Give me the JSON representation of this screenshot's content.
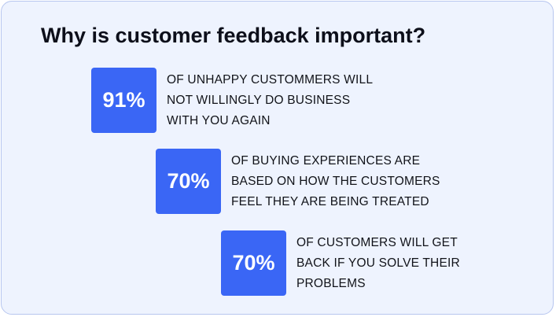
{
  "title": "Why is customer feedback important?",
  "stats": [
    {
      "value": "91%",
      "lines": [
        "OF UNHAPPY CUSTOMMERS WILL",
        "NOT WILLINGLY DO BUSINESS",
        "WITH YOU AGAIN"
      ]
    },
    {
      "value": "70%",
      "lines": [
        "OF BUYING EXPERIENCES ARE",
        "BASED ON HOW THE CUSTOMERS",
        "FEEL THEY ARE BEING TREATED"
      ]
    },
    {
      "value": "70%",
      "lines": [
        "OF CUSTOMERS WILL GET",
        "BACK IF YOU SOLVE THEIR",
        "PROBLEMS"
      ]
    }
  ],
  "colors": {
    "background": "#eef3fe",
    "border": "#b7c6ef",
    "badge": "#3a66f5",
    "title": "#0d0f1a"
  }
}
